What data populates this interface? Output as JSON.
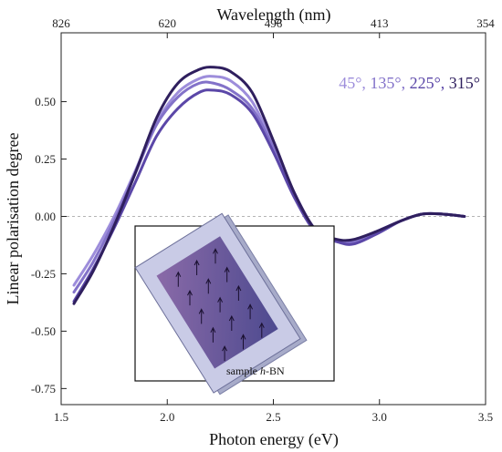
{
  "chart_data": {
    "type": "line",
    "title": "",
    "xlabel": "Photon energy (eV)",
    "ylabel": "Linear polarisation degree",
    "top_xlabel": "Wavelength (nm)",
    "xlim": [
      1.5,
      3.5
    ],
    "ylim": [
      -0.82,
      0.8
    ],
    "x_ticks": [
      1.5,
      2.0,
      2.5,
      3.0,
      3.5
    ],
    "x_tick_labels": [
      "1.5",
      "2.0",
      "2.5",
      "3.0",
      "3.5"
    ],
    "y_ticks": [
      -0.75,
      -0.5,
      -0.25,
      0.0,
      0.25,
      0.5
    ],
    "y_tick_labels": [
      "-0.75",
      "-0.50",
      "-0.25",
      "0.00",
      "0.25",
      "0.50"
    ],
    "top_ticks_energy": [
      1.5,
      2.0,
      2.5,
      3.0,
      3.5
    ],
    "top_tick_labels": [
      "826",
      "620",
      "496",
      "413",
      "354"
    ],
    "zero_line": true,
    "grid": false,
    "legend_placement": "top-right",
    "legend_parts": [
      {
        "text": "45°, ",
        "color": "#9d8ddb"
      },
      {
        "text": "135°, ",
        "color": "#8372c9"
      },
      {
        "text": "225°, ",
        "color": "#5b47a8"
      },
      {
        "text": "315°",
        "color": "#2f1f5e"
      }
    ],
    "series": [
      {
        "name": "45°",
        "color": "#9d8ddb",
        "x": [
          1.56,
          1.65,
          1.75,
          1.85,
          1.95,
          2.05,
          2.15,
          2.22,
          2.3,
          2.4,
          2.5,
          2.6,
          2.7,
          2.8,
          2.88,
          3.0,
          3.1,
          3.2,
          3.3,
          3.4
        ],
        "y": [
          -0.3,
          -0.17,
          0.0,
          0.2,
          0.41,
          0.54,
          0.6,
          0.61,
          0.59,
          0.5,
          0.31,
          0.1,
          -0.06,
          -0.11,
          -0.11,
          -0.06,
          -0.02,
          0.01,
          0.01,
          0.0
        ]
      },
      {
        "name": "135°",
        "color": "#8372c9",
        "x": [
          1.56,
          1.65,
          1.75,
          1.85,
          1.95,
          2.05,
          2.15,
          2.22,
          2.3,
          2.4,
          2.5,
          2.6,
          2.7,
          2.8,
          2.88,
          3.0,
          3.1,
          3.2,
          3.3,
          3.4
        ],
        "y": [
          -0.33,
          -0.2,
          -0.02,
          0.19,
          0.4,
          0.52,
          0.58,
          0.58,
          0.55,
          0.47,
          0.3,
          0.09,
          -0.06,
          -0.11,
          -0.11,
          -0.06,
          -0.02,
          0.01,
          0.01,
          0.0
        ]
      },
      {
        "name": "225°",
        "color": "#5b47a8",
        "x": [
          1.56,
          1.65,
          1.75,
          1.85,
          1.95,
          2.05,
          2.15,
          2.22,
          2.3,
          2.4,
          2.5,
          2.6,
          2.7,
          2.8,
          2.88,
          3.0,
          3.1,
          3.2,
          3.3,
          3.4
        ],
        "y": [
          -0.37,
          -0.23,
          -0.05,
          0.15,
          0.35,
          0.47,
          0.54,
          0.55,
          0.53,
          0.45,
          0.28,
          0.08,
          -0.07,
          -0.11,
          -0.12,
          -0.07,
          -0.02,
          0.01,
          0.01,
          0.0
        ]
      },
      {
        "name": "315°",
        "color": "#2f1f5e",
        "x": [
          1.56,
          1.65,
          1.75,
          1.85,
          1.95,
          2.05,
          2.15,
          2.22,
          2.3,
          2.4,
          2.5,
          2.6,
          2.7,
          2.8,
          2.88,
          3.0,
          3.1,
          3.2,
          3.3,
          3.4
        ],
        "y": [
          -0.38,
          -0.24,
          -0.04,
          0.19,
          0.43,
          0.58,
          0.64,
          0.65,
          0.63,
          0.54,
          0.33,
          0.1,
          -0.06,
          -0.1,
          -0.1,
          -0.06,
          -0.02,
          0.01,
          0.01,
          0.0
        ]
      }
    ]
  },
  "inset": {
    "label_prefix": "sample ",
    "label_italic": "h",
    "label_suffix": "-BN",
    "arrow_count": 15
  }
}
